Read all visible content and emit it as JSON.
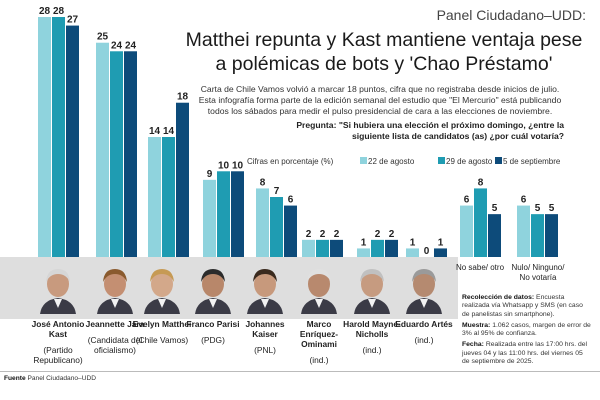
{
  "header": {
    "kicker": "Panel Ciudadano–UDD:",
    "headline": "Matthei repunta y Kast mantiene ventaja pese a polémicas de bots y 'Chao Préstamo'",
    "intro": "Carta de Chile Vamos volvió a marcar 18 puntos, cifra que no registraba desde inicios de julio. Esta infografía forma parte de la edición semanal del estudio que \"El Mercurio\" está publicando todos los sábados para medir el pulso presidencial de cara a las elecciones de noviembre.",
    "question": "Pregunta: \"Si hubiera una elección el próximo domingo, ¿entre la siguiente lista de candidatos (as) ¿por cuál votaría?"
  },
  "legend": {
    "note": "Cifras en porcentaje (%)",
    "labels": [
      "22 de agosto",
      "29 de agosto",
      "5 de septiembre"
    ]
  },
  "colors": {
    "series1": "#8fd3dd",
    "series2": "#1f9cb2",
    "series3": "#0d4b7a",
    "photo_band": "#dedede"
  },
  "chart_data": {
    "type": "bar",
    "categories": [
      "José Antonio Kast",
      "Jeannette Jara",
      "Evelyn Matthei",
      "Franco Parisi",
      "Johannes Kaiser",
      "Marco Enríquez-Ominami",
      "Harold Mayne-Nicholls",
      "Eduardo Artés",
      "No sabe/ otro",
      "Nulo/ Ninguno/ No votaría"
    ],
    "series": [
      {
        "name": "22 de agosto",
        "values": [
          28,
          25,
          14,
          9,
          8,
          2,
          1,
          1,
          6,
          6
        ]
      },
      {
        "name": "29 de agosto",
        "values": [
          28,
          24,
          14,
          10,
          7,
          2,
          2,
          0,
          8,
          5
        ]
      },
      {
        "name": "5 de septiembre",
        "values": [
          27,
          24,
          18,
          10,
          6,
          2,
          2,
          1,
          5,
          5
        ]
      }
    ],
    "ylim": [
      0,
      28
    ],
    "grid": false,
    "legend_position": "top-right"
  },
  "candidates": [
    {
      "name": "José Antonio Kast",
      "party": "(Partido Republicano)",
      "icon": "portrait-kast"
    },
    {
      "name": "Jeannette Jara",
      "party": "(Candidata del oficialismo)",
      "icon": "portrait-jara"
    },
    {
      "name": "Evelyn Matthei",
      "party": "(Chile Vamos)",
      "icon": "portrait-matthei"
    },
    {
      "name": "Franco Parisi",
      "party": "(PDG)",
      "icon": "portrait-parisi"
    },
    {
      "name": "Johannes Kaiser",
      "party": "(PNL)",
      "icon": "portrait-kaiser"
    },
    {
      "name": "Marco Enríquez-Ominami",
      "party": "(ind.)",
      "icon": "portrait-meo"
    },
    {
      "name": "Harold Mayne-Nicholls",
      "party": "(ind.)",
      "icon": "portrait-mayne-nicholls"
    },
    {
      "name": "Eduardo Artés",
      "party": "(ind.)",
      "icon": "portrait-artes"
    }
  ],
  "others": [
    "No sabe/ otro",
    "Nulo/ Ninguno/ No votaría"
  ],
  "methodology": {
    "collection_title": "Recolección de datos:",
    "collection_text": "Encuesta realizada vía Whatsapp y SMS (en caso de panelistas sin smartphone).",
    "sample_title": "Muestra:",
    "sample_text": "1.062 casos, margen de error de 3% al 95% de confianza.",
    "date_title": "Fecha:",
    "date_text": "Realizada entre las 17:00 hrs. del jueves 04 y las 11:00 hrs. del viernes 05 de septiembre de 2025."
  },
  "footer": {
    "label": "Fuente",
    "source": "Panel Ciudadano–UDD"
  }
}
